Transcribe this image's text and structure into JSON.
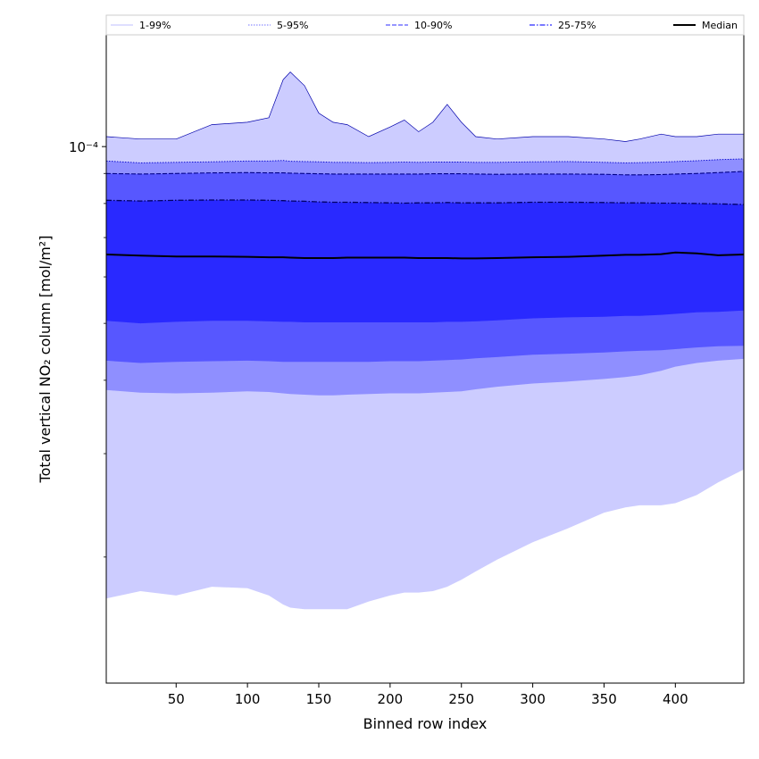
{
  "chart_data": {
    "type": "area",
    "xlabel": "Binned row index",
    "ylabel": "Total vertical NO₂ column [mol/m²]",
    "xlim": [
      1,
      448
    ],
    "ylim": [
      1.22e-05,
      0.000155
    ],
    "yscale": "log",
    "xticks": [
      50,
      100,
      150,
      200,
      250,
      300,
      350,
      400
    ],
    "yticks": [
      {
        "value": 0.0001,
        "label": "10⁻⁴"
      }
    ],
    "legend_position": "top",
    "colors": {
      "band_1_99": "#ccccff",
      "band_5_95": "#8f8fff",
      "band_10_90": "#5757ff",
      "band_25_75": "#2929ff",
      "median": "#000000",
      "edge_1_99": "#0000aa",
      "edge_5_95": "#0000cc",
      "edge_10_90": "#000088",
      "edge_25_75": "#000066"
    },
    "x": [
      1,
      25,
      50,
      75,
      100,
      115,
      125,
      130,
      140,
      150,
      160,
      170,
      185,
      200,
      210,
      220,
      230,
      240,
      250,
      260,
      275,
      300,
      325,
      350,
      365,
      375,
      390,
      400,
      415,
      430,
      448
    ],
    "series": [
      {
        "name": "1-99%",
        "role": "upper",
        "values": [
          0.000104,
          0.000103,
          0.000103,
          0.000109,
          0.00011,
          0.000112,
          0.00013,
          0.000134,
          0.000127,
          0.000114,
          0.00011,
          0.000109,
          0.000104,
          0.000108,
          0.000111,
          0.000106,
          0.00011,
          0.000118,
          0.00011,
          0.000104,
          0.000103,
          0.000104,
          0.000104,
          0.000103,
          0.000102,
          0.000103,
          0.000105,
          0.000104,
          0.000104,
          0.000105,
          0.000105
        ]
      },
      {
        "name": "5-95%",
        "role": "upper",
        "values": [
          9.45e-05,
          9.38e-05,
          9.4e-05,
          9.42e-05,
          9.45e-05,
          9.45e-05,
          9.47e-05,
          9.44e-05,
          9.43e-05,
          9.42e-05,
          9.4e-05,
          9.4e-05,
          9.39e-05,
          9.4e-05,
          9.41e-05,
          9.4e-05,
          9.41e-05,
          9.41e-05,
          9.41e-05,
          9.4e-05,
          9.4e-05,
          9.42e-05,
          9.43e-05,
          9.4e-05,
          9.38e-05,
          9.39e-05,
          9.41e-05,
          9.43e-05,
          9.46e-05,
          9.5e-05,
          9.53e-05
        ]
      },
      {
        "name": "10-90%",
        "role": "upper",
        "values": [
          9e-05,
          8.98e-05,
          9e-05,
          9.02e-05,
          9.03e-05,
          9.02e-05,
          9.02e-05,
          9.01e-05,
          9e-05,
          8.99e-05,
          8.98e-05,
          8.98e-05,
          8.98e-05,
          8.98e-05,
          8.98e-05,
          8.98e-05,
          8.99e-05,
          8.99e-05,
          8.99e-05,
          8.98e-05,
          8.97e-05,
          8.98e-05,
          8.98e-05,
          8.97e-05,
          8.95e-05,
          8.95e-05,
          8.96e-05,
          8.98e-05,
          9e-05,
          9.03e-05,
          9.07e-05
        ]
      },
      {
        "name": "25-75%",
        "role": "upper",
        "values": [
          8.1e-05,
          8.08e-05,
          8.1e-05,
          8.11e-05,
          8.11e-05,
          8.1e-05,
          8.09e-05,
          8.08e-05,
          8.07e-05,
          8.05e-05,
          8.04e-05,
          8.04e-05,
          8.03e-05,
          8.02e-05,
          8.01e-05,
          8.02e-05,
          8.02e-05,
          8.03e-05,
          8.02e-05,
          8.02e-05,
          8.02e-05,
          8.04e-05,
          8.04e-05,
          8.03e-05,
          8.02e-05,
          8.02e-05,
          8.01e-05,
          8.01e-05,
          8e-05,
          7.99e-05,
          7.97e-05
        ]
      },
      {
        "name": "Median",
        "values": [
          6.55e-05,
          6.52e-05,
          6.5e-05,
          6.5e-05,
          6.49e-05,
          6.48e-05,
          6.48e-05,
          6.47e-05,
          6.46e-05,
          6.46e-05,
          6.46e-05,
          6.47e-05,
          6.47e-05,
          6.47e-05,
          6.47e-05,
          6.46e-05,
          6.46e-05,
          6.46e-05,
          6.45e-05,
          6.45e-05,
          6.46e-05,
          6.48e-05,
          6.49e-05,
          6.52e-05,
          6.54e-05,
          6.54e-05,
          6.56e-05,
          6.6e-05,
          6.58e-05,
          6.53e-05,
          6.55e-05
        ]
      },
      {
        "name": "25-75%",
        "role": "lower",
        "values": [
          5.05e-05,
          5e-05,
          5.03e-05,
          5.05e-05,
          5.05e-05,
          5.04e-05,
          5.03e-05,
          5.03e-05,
          5.02e-05,
          5.02e-05,
          5.02e-05,
          5.02e-05,
          5.02e-05,
          5.02e-05,
          5.02e-05,
          5.02e-05,
          5.02e-05,
          5.03e-05,
          5.03e-05,
          5.04e-05,
          5.06e-05,
          5.1e-05,
          5.12e-05,
          5.13e-05,
          5.15e-05,
          5.15e-05,
          5.17e-05,
          5.19e-05,
          5.22e-05,
          5.23e-05,
          5.26e-05
        ]
      },
      {
        "name": "10-90%",
        "role": "lower",
        "values": [
          4.32e-05,
          4.28e-05,
          4.3e-05,
          4.31e-05,
          4.32e-05,
          4.31e-05,
          4.3e-05,
          4.3e-05,
          4.3e-05,
          4.3e-05,
          4.3e-05,
          4.3e-05,
          4.3e-05,
          4.31e-05,
          4.31e-05,
          4.31e-05,
          4.32e-05,
          4.33e-05,
          4.34e-05,
          4.36e-05,
          4.38e-05,
          4.42e-05,
          4.44e-05,
          4.46e-05,
          4.48e-05,
          4.49e-05,
          4.5e-05,
          4.52e-05,
          4.55e-05,
          4.57e-05,
          4.58e-05
        ]
      },
      {
        "name": "5-95%",
        "role": "lower",
        "values": [
          3.85e-05,
          3.81e-05,
          3.8e-05,
          3.81e-05,
          3.83e-05,
          3.82e-05,
          3.8e-05,
          3.79e-05,
          3.78e-05,
          3.77e-05,
          3.77e-05,
          3.78e-05,
          3.79e-05,
          3.8e-05,
          3.8e-05,
          3.8e-05,
          3.81e-05,
          3.82e-05,
          3.83e-05,
          3.86e-05,
          3.9e-05,
          3.95e-05,
          3.98e-05,
          4.02e-05,
          4.05e-05,
          4.08e-05,
          4.15e-05,
          4.22e-05,
          4.28e-05,
          4.32e-05,
          4.35e-05
        ]
      },
      {
        "name": "1-99%",
        "role": "lower",
        "values": [
          1.7e-05,
          1.75e-05,
          1.72e-05,
          1.78e-05,
          1.77e-05,
          1.72e-05,
          1.66e-05,
          1.64e-05,
          1.63e-05,
          1.63e-05,
          1.63e-05,
          1.63e-05,
          1.68e-05,
          1.72e-05,
          1.74e-05,
          1.74e-05,
          1.75e-05,
          1.78e-05,
          1.83e-05,
          1.89e-05,
          1.98e-05,
          2.12e-05,
          2.24e-05,
          2.38e-05,
          2.43e-05,
          2.45e-05,
          2.45e-05,
          2.47e-05,
          2.55e-05,
          2.68e-05,
          2.82e-05
        ]
      }
    ],
    "legend": [
      {
        "label": "1-99%",
        "color": "#ccccff",
        "style": "solid"
      },
      {
        "label": "5-95%",
        "color": "#8f8fff",
        "style": "dotted"
      },
      {
        "label": "10-90%",
        "color": "#5757ff",
        "style": "dashed"
      },
      {
        "label": "25-75%",
        "color": "#2929ff",
        "style": "dashdot"
      },
      {
        "label": "Median",
        "color": "#000000",
        "style": "solid"
      }
    ]
  }
}
